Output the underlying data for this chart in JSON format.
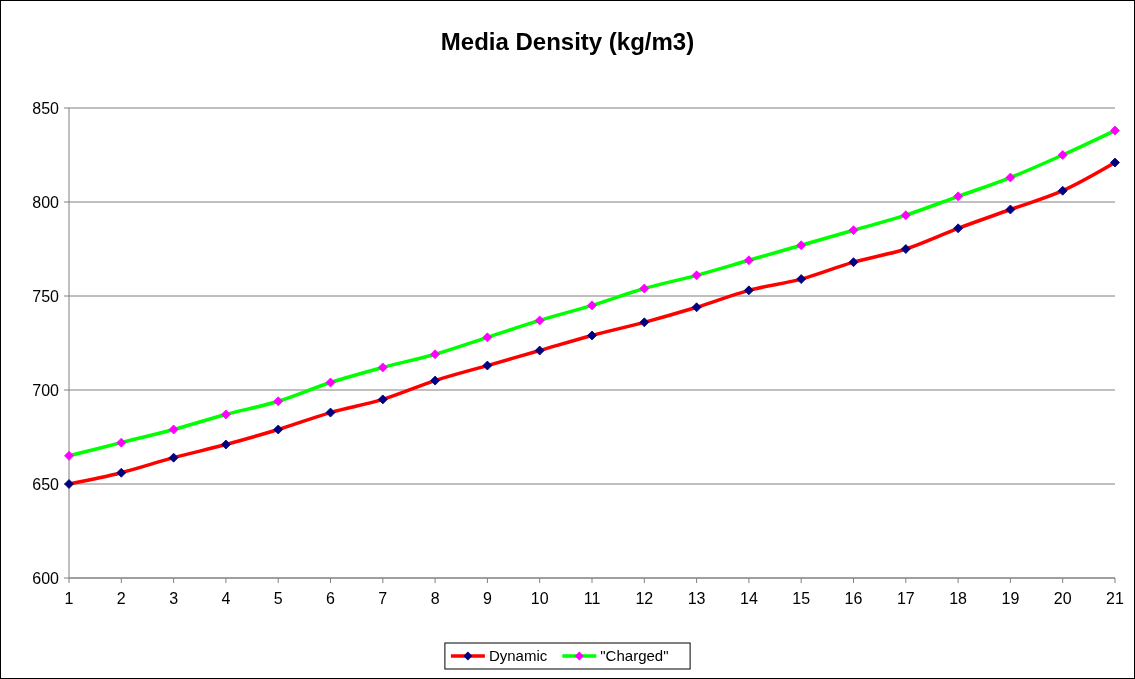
{
  "chart_data": {
    "type": "line",
    "title": "Media Density (kg/m3)",
    "x": [
      1,
      2,
      3,
      4,
      5,
      6,
      7,
      8,
      9,
      10,
      11,
      12,
      13,
      14,
      15,
      16,
      17,
      18,
      19,
      20,
      21
    ],
    "xlim": [
      1,
      21
    ],
    "xticks": [
      1,
      2,
      3,
      4,
      5,
      6,
      7,
      8,
      9,
      10,
      11,
      12,
      13,
      14,
      15,
      16,
      17,
      18,
      19,
      20,
      21
    ],
    "ylim": [
      600,
      850
    ],
    "yticks": [
      600,
      650,
      700,
      750,
      800,
      850
    ],
    "grid": "y",
    "legend": "bottom",
    "marker": "diamond",
    "line_style": "solid",
    "series": [
      {
        "name": "Dynamic",
        "color": "#ff0000",
        "values": [
          650,
          656,
          664,
          671,
          679,
          688,
          695,
          705,
          713,
          721,
          729,
          736,
          744,
          753,
          759,
          768,
          775,
          786,
          796,
          806,
          821
        ]
      },
      {
        "name": "\"Charged\"",
        "color": "#00ff00",
        "values": [
          665,
          672,
          679,
          687,
          694,
          704,
          712,
          719,
          728,
          737,
          745,
          754,
          761,
          769,
          777,
          785,
          793,
          803,
          813,
          825,
          838
        ]
      }
    ]
  }
}
